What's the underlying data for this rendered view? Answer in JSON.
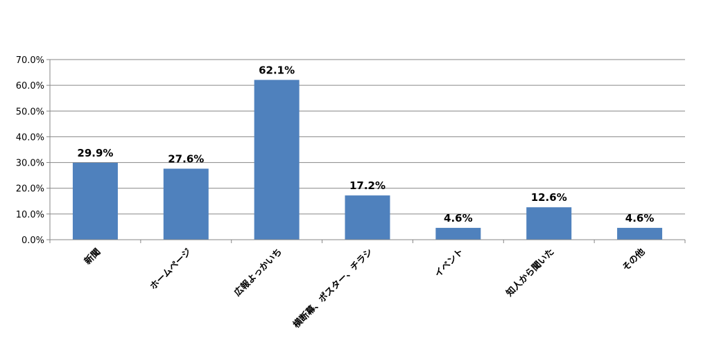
{
  "chart_data": {
    "type": "bar",
    "categories": [
      "新聞",
      "ホームページ",
      "広報よっかいち",
      "横断幕、ポスター、チラシ",
      "イベント",
      "知人から聞いた",
      "その他"
    ],
    "values": [
      29.9,
      27.6,
      62.1,
      17.2,
      4.6,
      12.6,
      4.6
    ],
    "data_labels": [
      "29.9%",
      "27.6%",
      "62.1%",
      "17.2%",
      "4.6%",
      "12.6%",
      "4.6%"
    ],
    "yticks": [
      "0.0%",
      "10.0%",
      "20.0%",
      "30.0%",
      "40.0%",
      "50.0%",
      "60.0%",
      "70.0%"
    ],
    "ylim": [
      0,
      70
    ],
    "grid": true,
    "legend": "none",
    "colors": {
      "bar": "#4F81BD",
      "grid": "#868686",
      "axis": "#868686"
    }
  }
}
